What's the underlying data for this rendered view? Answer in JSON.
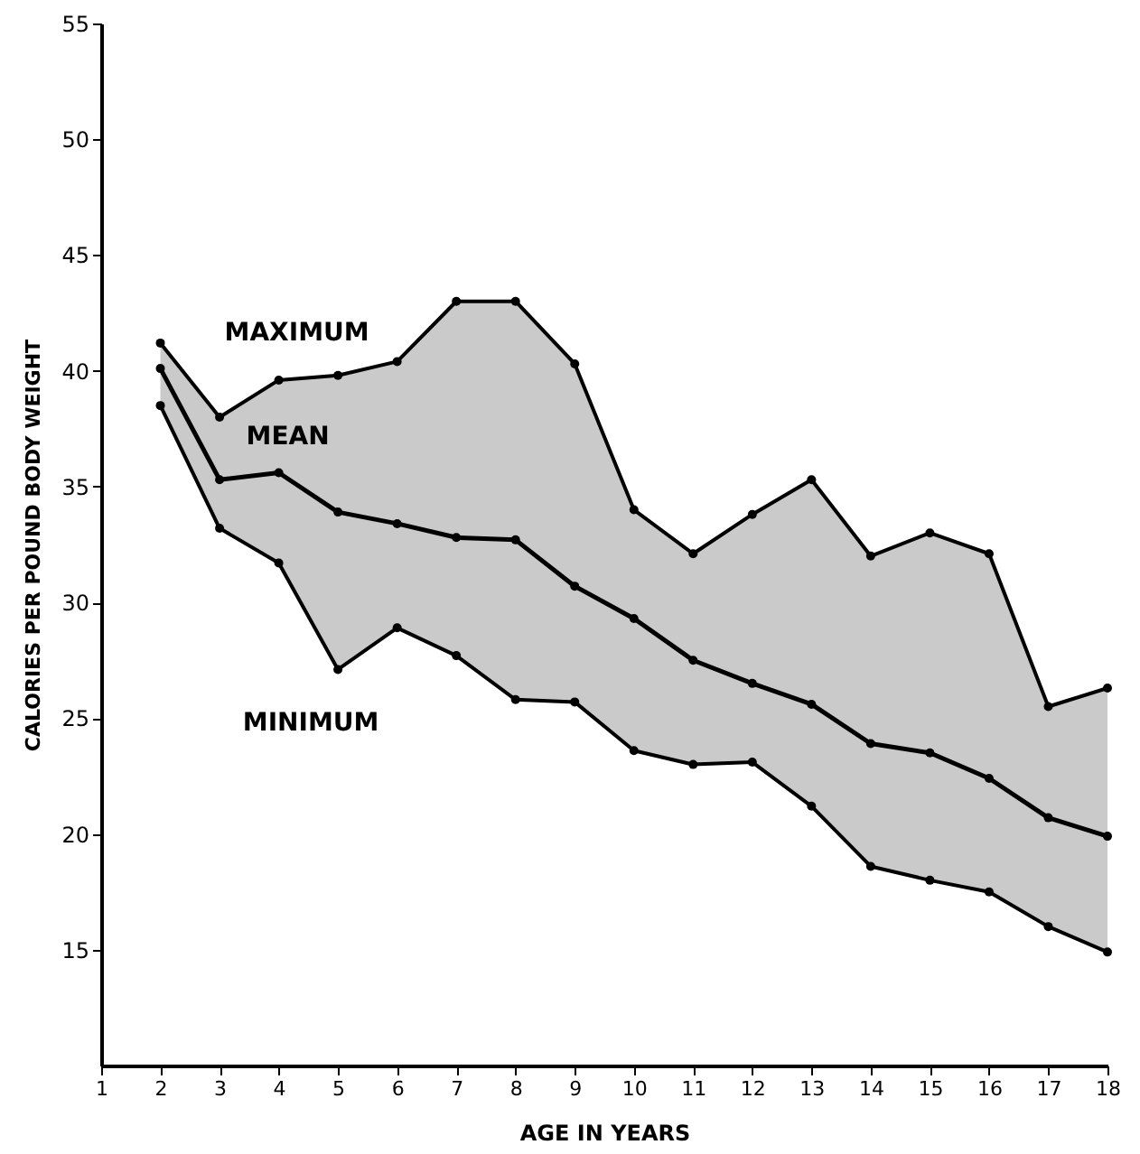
{
  "chart_data": {
    "type": "line",
    "xlabel": "AGE IN YEARS",
    "ylabel": "CALORIES PER POUND BODY WEIGHT",
    "x": [
      2,
      3,
      4,
      5,
      6,
      7,
      8,
      9,
      10,
      11,
      12,
      13,
      14,
      15,
      16,
      17,
      18
    ],
    "series": [
      {
        "name": "MAXIMUM",
        "color": "#000000",
        "values": [
          41.2,
          38.0,
          39.6,
          39.8,
          40.4,
          43.0,
          43.0,
          40.3,
          34.0,
          32.1,
          33.8,
          35.3,
          32.0,
          33.0,
          32.1,
          25.5,
          26.3
        ]
      },
      {
        "name": "MEAN",
        "color": "#000000",
        "values": [
          40.1,
          35.3,
          35.6,
          33.9,
          33.4,
          32.8,
          32.7,
          30.7,
          29.3,
          27.5,
          26.5,
          25.6,
          23.9,
          23.5,
          22.4,
          20.7,
          19.9
        ],
        "upper": [
          41.2,
          38.0,
          39.6,
          39.8,
          40.4,
          43.0,
          43.0,
          40.3,
          34.0,
          32.1,
          33.8,
          35.3,
          32.0,
          33.0,
          32.1,
          25.5,
          26.3
        ],
        "lower": [
          38.5,
          33.2,
          31.7,
          27.1,
          28.9,
          27.7,
          25.8,
          25.7,
          23.6,
          23.0,
          23.1,
          21.2,
          18.6,
          18.0,
          17.5,
          16.0,
          14.9
        ]
      },
      {
        "name": "MINIMUM",
        "color": "#000000",
        "values": [
          38.5,
          33.2,
          31.7,
          27.1,
          28.9,
          27.7,
          25.8,
          25.7,
          23.6,
          23.0,
          23.1,
          21.2,
          18.6,
          18.0,
          17.5,
          16.0,
          14.9
        ]
      }
    ],
    "xlim": [
      1,
      18
    ],
    "xticks": [
      1,
      2,
      3,
      4,
      5,
      6,
      7,
      8,
      9,
      10,
      11,
      12,
      13,
      14,
      15,
      16,
      17,
      18
    ],
    "ylim": [
      10,
      55
    ],
    "yticks": [
      15,
      20,
      25,
      30,
      35,
      40,
      45,
      50,
      55
    ],
    "marker": "circle",
    "line_style": "solid",
    "grid": false,
    "legend": false
  }
}
